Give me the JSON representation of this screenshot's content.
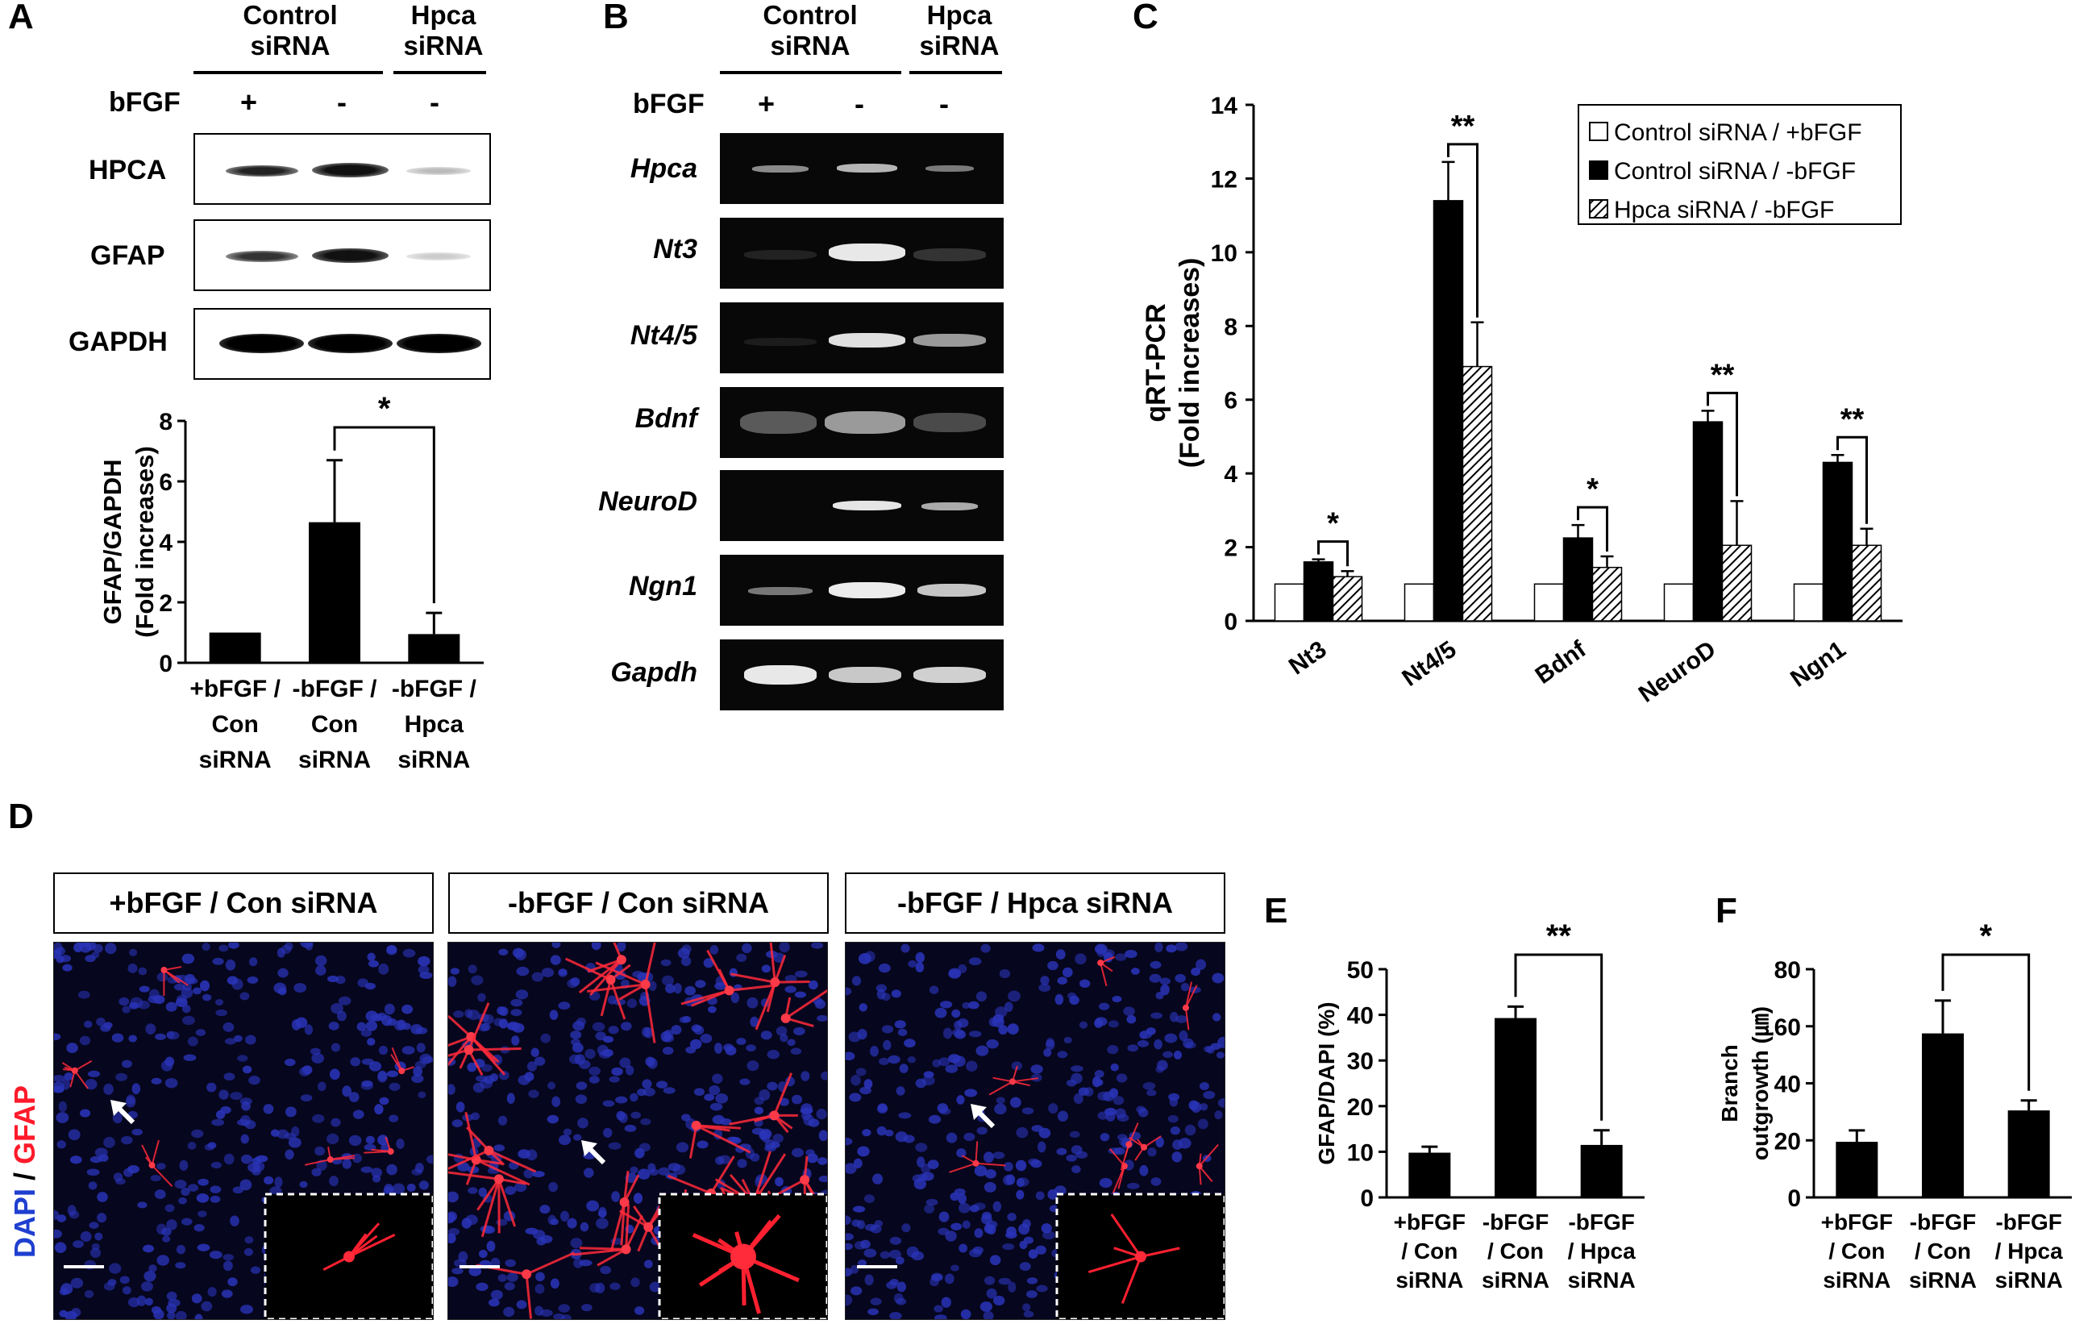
{
  "panels": {
    "A": "A",
    "B": "B",
    "C": "C",
    "D": "D",
    "E": "E",
    "F": "F"
  },
  "panelA": {
    "group_control": [
      "Control",
      "siRNA"
    ],
    "group_hpca": [
      "Hpca",
      "siRNA"
    ],
    "bfgf_label": "bFGF",
    "bfgf_signs": [
      "+",
      "-",
      "-"
    ],
    "blot_labels": [
      "HPCA",
      "GFAP",
      "GAPDH"
    ],
    "significance": "*"
  },
  "panelB": {
    "group_control": [
      "Control",
      "siRNA"
    ],
    "group_hpca": [
      "Hpca",
      "siRNA"
    ],
    "bfgf_label": "bFGF",
    "bfgf_signs": [
      "+",
      "-",
      "-"
    ],
    "genes": [
      "Hpca",
      "Nt3",
      "Nt4/5",
      "Bdnf",
      "NeuroD",
      "Ngn1",
      "Gapdh"
    ]
  },
  "panelD": {
    "titles": [
      "+bFGF / Con siRNA",
      "-bFGF / Con siRNA",
      "-bFGF / Hpca siRNA"
    ],
    "stain_dapi": "DAPI",
    "stain_sep": " / ",
    "stain_gfap": "GFAP"
  },
  "colors": {
    "bar_black": "#000000",
    "bar_white": "#ffffff",
    "dapi_blue": "#1f3fd0",
    "gfap_red": "#ff1a2a",
    "micro_bg": "#06061e"
  },
  "chart_data": [
    {
      "id": "A",
      "type": "bar",
      "ylabel": [
        "GFAP/GAPDH",
        "(Fold increases)"
      ],
      "categories": [
        [
          "+bFGF /",
          "Con",
          "siRNA"
        ],
        [
          "-bFGF /",
          "Con",
          "siRNA"
        ],
        [
          "-bFGF /",
          "Hpca",
          "siRNA"
        ]
      ],
      "values": [
        1.0,
        4.65,
        0.95
      ],
      "errors": [
        0,
        2.05,
        0.7
      ],
      "ylim": [
        0,
        8
      ],
      "yticks": [
        "0",
        "2",
        "4",
        "6",
        "8"
      ],
      "significance": [
        {
          "from": 1,
          "to": 2,
          "label": "*"
        }
      ]
    },
    {
      "id": "C",
      "type": "bar",
      "ylabel": [
        "qRT-PCR",
        "(Fold increases)"
      ],
      "categories": [
        "Nt3",
        "Nt4/5",
        "Bdnf",
        "NeuroD",
        "Ngn1"
      ],
      "series": [
        {
          "name": "Control siRNA / +bFGF",
          "values": [
            1,
            1,
            1,
            1,
            1
          ],
          "errors": [
            0,
            0,
            0,
            0,
            0
          ]
        },
        {
          "name": "Control siRNA / -bFGF",
          "values": [
            1.6,
            11.4,
            2.25,
            5.4,
            4.3
          ],
          "errors": [
            0.07,
            1.05,
            0.35,
            0.3,
            0.2
          ]
        },
        {
          "name": "Hpca siRNA / -bFGF",
          "values": [
            1.2,
            6.9,
            1.45,
            2.05,
            2.05
          ],
          "errors": [
            0.15,
            1.2,
            0.3,
            1.2,
            0.45
          ]
        }
      ],
      "ylim": [
        0,
        14
      ],
      "yticks": [
        "0",
        "2",
        "4",
        "6",
        "8",
        "10",
        "12",
        "14"
      ],
      "significance": [
        {
          "group": 0,
          "label": "*"
        },
        {
          "group": 1,
          "label": "**"
        },
        {
          "group": 2,
          "label": "*"
        },
        {
          "group": 3,
          "label": "**"
        },
        {
          "group": 4,
          "label": "**"
        }
      ],
      "legend": "top-right"
    },
    {
      "id": "E",
      "type": "bar",
      "ylabel": [
        "GFAP/DAPI (%)"
      ],
      "categories": [
        [
          "+bFGF",
          "/ Con",
          "siRNA"
        ],
        [
          "-bFGF",
          "/ Con",
          "siRNA"
        ],
        [
          "-bFGF",
          "/ Hpca",
          "siRNA"
        ]
      ],
      "values": [
        9.8,
        39.3,
        11.5
      ],
      "errors": [
        1.3,
        2.5,
        3.2
      ],
      "ylim": [
        0,
        50
      ],
      "yticks": [
        "0",
        "10",
        "20",
        "30",
        "40",
        "50"
      ],
      "significance": [
        {
          "from": 1,
          "to": 2,
          "label": "**"
        }
      ]
    },
    {
      "id": "F",
      "type": "bar",
      "ylabel": [
        "Branch",
        "outgrowth (㎛)"
      ],
      "categories": [
        [
          "+bFGF",
          "/ Con",
          "siRNA"
        ],
        [
          "-bFGF",
          "/ Con",
          "siRNA"
        ],
        [
          "-bFGF",
          "/ Hpca",
          "siRNA"
        ]
      ],
      "values": [
        19.5,
        57.5,
        30.5
      ],
      "errors": [
        4.0,
        11.5,
        3.5
      ],
      "ylim": [
        0,
        80
      ],
      "yticks": [
        "0",
        "20",
        "40",
        "60",
        "80"
      ],
      "significance": [
        {
          "from": 1,
          "to": 2,
          "label": "*"
        }
      ]
    }
  ]
}
